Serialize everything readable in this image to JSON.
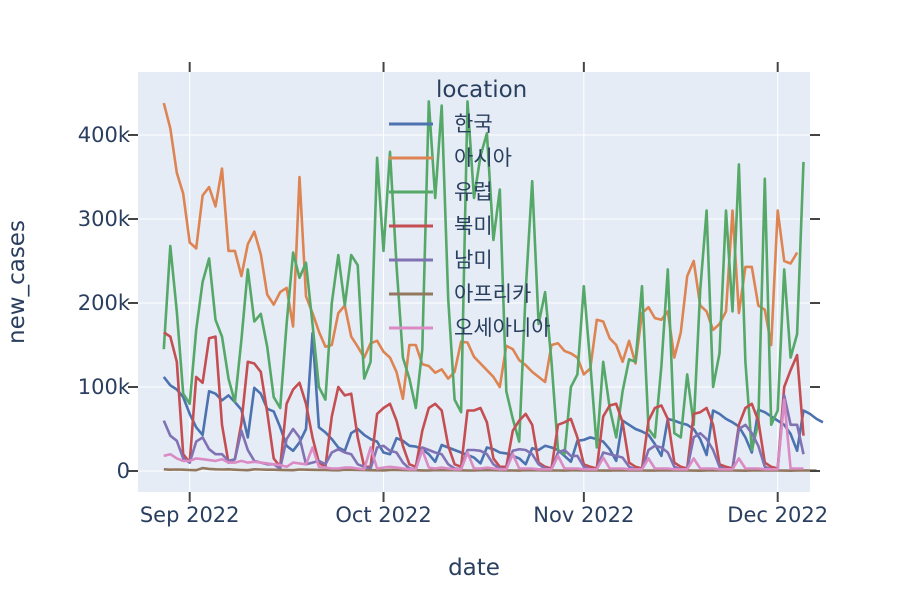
{
  "chart_data": {
    "type": "line",
    "xlabel": "date",
    "ylabel": "new_cases",
    "xlim": [
      "2022-08-24",
      "2022-12-06"
    ],
    "ylim": [
      -25000,
      475000
    ],
    "x_ticks": [
      {
        "date": "2022-09-01",
        "label": "Sep 2022"
      },
      {
        "date": "2022-10-01",
        "label": "Oct 2022"
      },
      {
        "date": "2022-11-01",
        "label": "Nov 2022"
      },
      {
        "date": "2022-12-01",
        "label": "Dec 2022"
      }
    ],
    "y_ticks": [
      {
        "value": 0,
        "label": "0"
      },
      {
        "value": 100000,
        "label": "100k"
      },
      {
        "value": 200000,
        "label": "200k"
      },
      {
        "value": 300000,
        "label": "300k"
      },
      {
        "value": 400000,
        "label": "400k"
      }
    ],
    "grid": true,
    "legend": {
      "title": "location",
      "placement": "top-center"
    },
    "x_start": "2022-08-28",
    "colors": {
      "background": "#E5ECF6",
      "grid": "#FFFFFF",
      "text": "#2a3f5f"
    },
    "series": [
      {
        "name": "한국",
        "color": "#4C72B0",
        "values": [
          112000,
          102000,
          97000,
          88000,
          68000,
          52000,
          43000,
          95000,
          92000,
          84000,
          90000,
          82000,
          73000,
          40000,
          99000,
          92000,
          74000,
          71000,
          52000,
          30000,
          24000,
          34000,
          50000,
          164000,
          52000,
          46000,
          38000,
          28000,
          24000,
          45000,
          50000,
          43000,
          38000,
          35000,
          22000,
          20000,
          39000,
          36000,
          30000,
          29000,
          26000,
          20000,
          11000,
          31000,
          28000,
          25000,
          22000,
          19000,
          16000,
          9000,
          28000,
          26000,
          22000,
          21000,
          18000,
          15000,
          8000,
          27000,
          25000,
          30000,
          28000,
          25000,
          18000,
          11000,
          36000,
          37000,
          40000,
          38000,
          35000,
          26000,
          12000,
          60000,
          55000,
          50000,
          47000,
          43000,
          32000,
          18000,
          62000,
          60000,
          57000,
          55000,
          50000,
          38000,
          19000,
          72000,
          68000,
          62000,
          58000,
          53000,
          40000,
          22000,
          73000,
          70000,
          65000,
          60000,
          55000,
          44000,
          24000,
          72000,
          68000,
          62000,
          58000
        ]
      },
      {
        "name": "아시아",
        "color": "#DD8452",
        "values": [
          438000,
          408000,
          355000,
          330000,
          272000,
          265000,
          328000,
          338000,
          315000,
          360000,
          262000,
          262000,
          232000,
          270000,
          285000,
          258000,
          210000,
          198000,
          213000,
          218000,
          172000,
          350000,
          208000,
          188000,
          166000,
          148000,
          150000,
          188000,
          197000,
          160000,
          148000,
          135000,
          152000,
          155000,
          142000,
          135000,
          118000,
          86000,
          150000,
          150000,
          127000,
          125000,
          117000,
          121000,
          110000,
          118000,
          154000,
          153000,
          136000,
          128000,
          120000,
          112000,
          100000,
          149000,
          145000,
          132000,
          126000,
          118000,
          112000,
          106000,
          150000,
          152000,
          143000,
          140000,
          135000,
          115000,
          122000,
          180000,
          178000,
          158000,
          150000,
          130000,
          155000,
          128000,
          188000,
          195000,
          182000,
          180000,
          190000,
          135000,
          165000,
          232000,
          250000,
          197000,
          190000,
          168000,
          175000,
          190000,
          310000,
          188000,
          243000,
          243000,
          197000,
          192000,
          150000,
          310000,
          250000,
          247000,
          260000
        ]
      },
      {
        "name": "유럽",
        "color": "#55A868",
        "values": [
          145000,
          268000,
          190000,
          92000,
          80000,
          168000,
          225000,
          253000,
          180000,
          160000,
          110000,
          82000,
          156000,
          240000,
          178000,
          187000,
          148000,
          88000,
          75000,
          175000,
          260000,
          230000,
          248000,
          175000,
          100000,
          85000,
          200000,
          257000,
          197000,
          257000,
          245000,
          110000,
          130000,
          373000,
          262000,
          380000,
          245000,
          135000,
          110000,
          75000,
          145000,
          440000,
          325000,
          435000,
          205000,
          85000,
          70000,
          440000,
          325000,
          375000,
          402000,
          275000,
          335000,
          95000,
          62000,
          35000,
          215000,
          345000,
          175000,
          213000,
          130000,
          25000,
          20000,
          100000,
          115000,
          220000,
          128000,
          28000,
          130000,
          75000,
          40000,
          95000,
          133000,
          130000,
          220000,
          50000,
          40000,
          125000,
          240000,
          45000,
          40000,
          115000,
          55000,
          215000,
          310000,
          100000,
          140000,
          310000,
          190000,
          365000,
          130000,
          25000,
          57000,
          348000,
          55000,
          72000,
          240000,
          135000,
          163000,
          368000
        ]
      },
      {
        "name": "북미",
        "color": "#C44E52",
        "values": [
          165000,
          160000,
          130000,
          20000,
          10000,
          112000,
          105000,
          158000,
          160000,
          55000,
          10000,
          14000,
          57000,
          130000,
          128000,
          118000,
          70000,
          15000,
          5000,
          80000,
          97000,
          105000,
          80000,
          40000,
          10000,
          5000,
          65000,
          100000,
          90000,
          92000,
          40000,
          5000,
          5000,
          68000,
          75000,
          80000,
          60000,
          30000,
          8000,
          5000,
          48000,
          75000,
          80000,
          72000,
          30000,
          8000,
          5000,
          72000,
          72000,
          75000,
          58000,
          15000,
          5000,
          5000,
          48000,
          60000,
          68000,
          55000,
          10000,
          5000,
          3000,
          55000,
          58000,
          62000,
          40000,
          8000,
          5000,
          3000,
          65000,
          78000,
          80000,
          58000,
          10000,
          5000,
          3000,
          60000,
          75000,
          78000,
          62000,
          10000,
          5000,
          3000,
          68000,
          70000,
          75000,
          55000,
          8000,
          5000,
          3000,
          55000,
          75000,
          80000,
          60000,
          10000,
          5000,
          3000,
          100000,
          120000,
          138000,
          42000
        ]
      },
      {
        "name": "남미",
        "color": "#8172B3",
        "values": [
          60000,
          42000,
          36000,
          15000,
          10000,
          35000,
          40000,
          26000,
          20000,
          20000,
          12000,
          14000,
          48000,
          25000,
          12000,
          10000,
          8000,
          8000,
          3000,
          38000,
          50000,
          40000,
          8000,
          10000,
          12000,
          8000,
          22000,
          26000,
          22000,
          20000,
          8000,
          5000,
          3000,
          28000,
          30000,
          24000,
          22000,
          10000,
          3000,
          2000,
          28000,
          25000,
          22000,
          20000,
          8000,
          3000,
          2000,
          25000,
          25000,
          24000,
          20000,
          8000,
          3000,
          2000,
          24000,
          26000,
          25000,
          20000,
          8000,
          3000,
          2000,
          22000,
          25000,
          18000,
          18000,
          5000,
          2000,
          2000,
          22000,
          20000,
          18000,
          16000,
          5000,
          2000,
          2000,
          25000,
          30000,
          28000,
          22000,
          5000,
          2000,
          2000,
          40000,
          45000,
          38000,
          25000,
          5000,
          2000,
          2000,
          50000,
          55000,
          45000,
          30000,
          5000,
          2000,
          2000,
          90000,
          55000,
          55000,
          20000
        ]
      },
      {
        "name": "아프리카",
        "color": "#937860",
        "values": [
          2000,
          1500,
          1800,
          1500,
          1200,
          1000,
          3500,
          2500,
          2000,
          1800,
          2000,
          1500,
          1200,
          1000,
          2000,
          1800,
          1500,
          1600,
          1300,
          1100,
          900,
          1800,
          1600,
          1400,
          1300,
          1200,
          1000,
          800,
          1500,
          1400,
          1200,
          1100,
          1000,
          800,
          700,
          1300,
          1200,
          1100,
          1000,
          900,
          700,
          600,
          1100,
          1000,
          950,
          900,
          800,
          650,
          550,
          1000,
          950,
          900,
          850,
          750,
          600,
          500,
          900,
          850,
          800,
          750,
          700,
          550,
          450,
          850,
          800,
          750,
          700,
          650,
          500,
          450,
          800,
          750,
          700,
          680,
          600,
          480,
          420,
          780,
          740,
          700,
          660,
          600,
          470,
          400,
          760,
          720,
          680,
          640,
          580,
          460,
          400,
          740,
          700,
          660,
          620,
          560,
          440,
          380,
          720,
          680,
          640,
          600
        ]
      },
      {
        "name": "오세아니아",
        "color": "#DA8BC3",
        "values": [
          18000,
          20000,
          15000,
          12000,
          12000,
          15000,
          14000,
          13000,
          12000,
          14000,
          10000,
          10000,
          12000,
          10000,
          11000,
          10000,
          9000,
          8000,
          7000,
          5000,
          10000,
          9000,
          8000,
          28000,
          5000,
          4000,
          3000,
          3000,
          4000,
          4000,
          3000,
          2000,
          28000,
          3000,
          4000,
          5000,
          4000,
          3000,
          2000,
          2000,
          25000,
          4000,
          3000,
          4000,
          3000,
          2000,
          2000,
          22000,
          3000,
          3000,
          4000,
          3000,
          2000,
          2000,
          20000,
          3000,
          3000,
          3000,
          2000,
          2000,
          2000,
          18000,
          3000,
          3000,
          3000,
          2000,
          2000,
          2000,
          16000,
          3000,
          3000,
          3000,
          2000,
          2000,
          2000,
          15000,
          3000,
          3000,
          3000,
          2000,
          2000,
          2000,
          15000,
          3000,
          3000,
          3000,
          2000,
          2000,
          2000,
          15000,
          3000,
          3000,
          3000,
          2000,
          2000,
          2000,
          85000,
          3000,
          3000,
          3000
        ]
      }
    ]
  }
}
